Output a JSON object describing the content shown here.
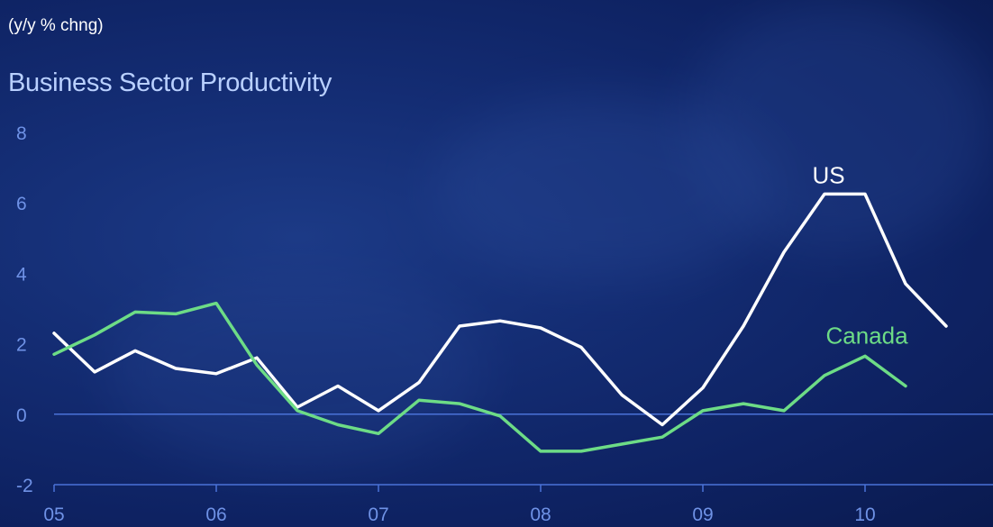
{
  "header": {
    "subtitle": "(y/y % chng)",
    "title": "Business Sector Productivity"
  },
  "colors": {
    "background": "#0e2262",
    "us_line": "#ffffff",
    "canada_line": "#6ddc86",
    "axis": "#4a72d8",
    "tick_text": "#6f92e6",
    "title_text": "#b9d0ff"
  },
  "chart_data": {
    "type": "line",
    "title": "Business Sector Productivity",
    "ylabel": "(y/y % chng)",
    "xlabel": "",
    "ylim": [
      -2,
      8
    ],
    "xlim": [
      2005,
      2010.75
    ],
    "yticks": [
      -2,
      0,
      2,
      4,
      6,
      8
    ],
    "xticks": [
      {
        "value": 2005,
        "label": "05"
      },
      {
        "value": 2006,
        "label": "06"
      },
      {
        "value": 2007,
        "label": "07"
      },
      {
        "value": 2008,
        "label": "08"
      },
      {
        "value": 2009,
        "label": "09"
      },
      {
        "value": 2010,
        "label": "10"
      }
    ],
    "zero_line": true,
    "grid": false,
    "series": [
      {
        "name": "US",
        "color": "#ffffff",
        "x": [
          2005.0,
          2005.25,
          2005.5,
          2005.75,
          2006.0,
          2006.25,
          2006.5,
          2006.75,
          2007.0,
          2007.25,
          2007.5,
          2007.75,
          2008.0,
          2008.25,
          2008.5,
          2008.75,
          2009.0,
          2009.25,
          2009.5,
          2009.75,
          2010.0,
          2010.25,
          2010.5
        ],
        "values": [
          2.3,
          1.2,
          1.8,
          1.3,
          1.15,
          1.6,
          0.2,
          0.8,
          0.1,
          0.9,
          2.5,
          2.65,
          2.45,
          1.9,
          0.55,
          -0.3,
          0.75,
          2.5,
          4.6,
          6.25,
          6.25,
          3.7,
          2.5
        ]
      },
      {
        "name": "Canada",
        "color": "#6ddc86",
        "x": [
          2005.0,
          2005.25,
          2005.5,
          2005.75,
          2006.0,
          2006.25,
          2006.5,
          2006.75,
          2007.0,
          2007.25,
          2007.5,
          2007.75,
          2008.0,
          2008.25,
          2008.5,
          2008.75,
          2009.0,
          2009.25,
          2009.5,
          2009.75,
          2010.0,
          2010.25
        ],
        "values": [
          1.7,
          2.25,
          2.9,
          2.85,
          3.15,
          1.4,
          0.1,
          -0.3,
          -0.55,
          0.4,
          0.3,
          -0.05,
          -1.05,
          -1.05,
          -0.85,
          -0.65,
          0.1,
          0.3,
          0.1,
          1.1,
          1.65,
          0.8
        ]
      }
    ],
    "annotations": [
      {
        "text": "US",
        "series": "US"
      },
      {
        "text": "Canada",
        "series": "Canada"
      }
    ]
  }
}
